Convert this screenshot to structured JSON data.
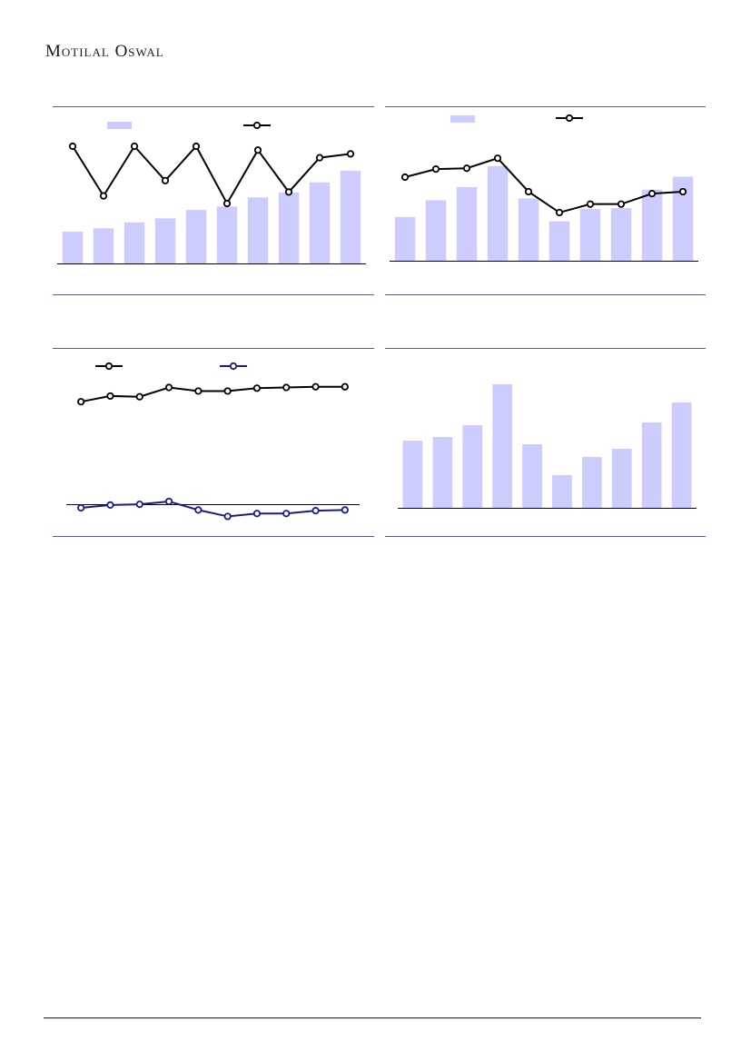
{
  "header": {
    "brand": "Motilal Oswal"
  },
  "colors": {
    "bar": "#ccccff",
    "line_black": "#000000",
    "line_navy": "#1a1a8c",
    "rule": "#5b5b8f"
  },
  "chart_data": [
    {
      "type": "bar",
      "id": "chart-1",
      "series": [
        {
          "kind": "bar",
          "values": [
            38,
            42,
            49,
            54,
            64,
            68,
            79,
            85,
            97,
            111
          ],
          "ylim": [
            0,
            125
          ]
        },
        {
          "kind": "line",
          "values": [
            25,
            12,
            25,
            16,
            25,
            10,
            24,
            13,
            22,
            23
          ],
          "ylim": [
            0,
            30
          ]
        }
      ],
      "grid": false
    },
    {
      "type": "bar",
      "id": "chart-2",
      "series": [
        {
          "kind": "bar",
          "values": [
            50,
            69,
            84,
            108,
            71,
            45,
            59,
            60,
            81,
            96
          ],
          "ylim": [
            0,
            115
          ]
        },
        {
          "kind": "line",
          "values": [
            21,
            23,
            23.2,
            25.7,
            17.4,
            12.2,
            14.3,
            14.3,
            16.9,
            17.4
          ],
          "ylim": [
            0,
            35
          ]
        }
      ],
      "grid": false
    },
    {
      "type": "line",
      "id": "chart-3",
      "series": [
        {
          "kind": "line",
          "color": "black",
          "values": [
            50,
            50.8,
            50.7,
            52,
            51.5,
            51.5,
            51.9,
            52,
            52.1,
            52.1
          ]
        },
        {
          "kind": "line",
          "color": "navy",
          "values": [
            35.1,
            35.5,
            35.6,
            36,
            34.8,
            33.9,
            34.3,
            34.3,
            34.7,
            34.8
          ]
        }
      ],
      "ylim": [
        30,
        55
      ],
      "grid": false
    },
    {
      "type": "bar",
      "id": "chart-4",
      "values": [
        74,
        78,
        91,
        136,
        70,
        36,
        56,
        65,
        94,
        116
      ],
      "ylim": [
        0,
        145
      ],
      "grid": false
    }
  ]
}
